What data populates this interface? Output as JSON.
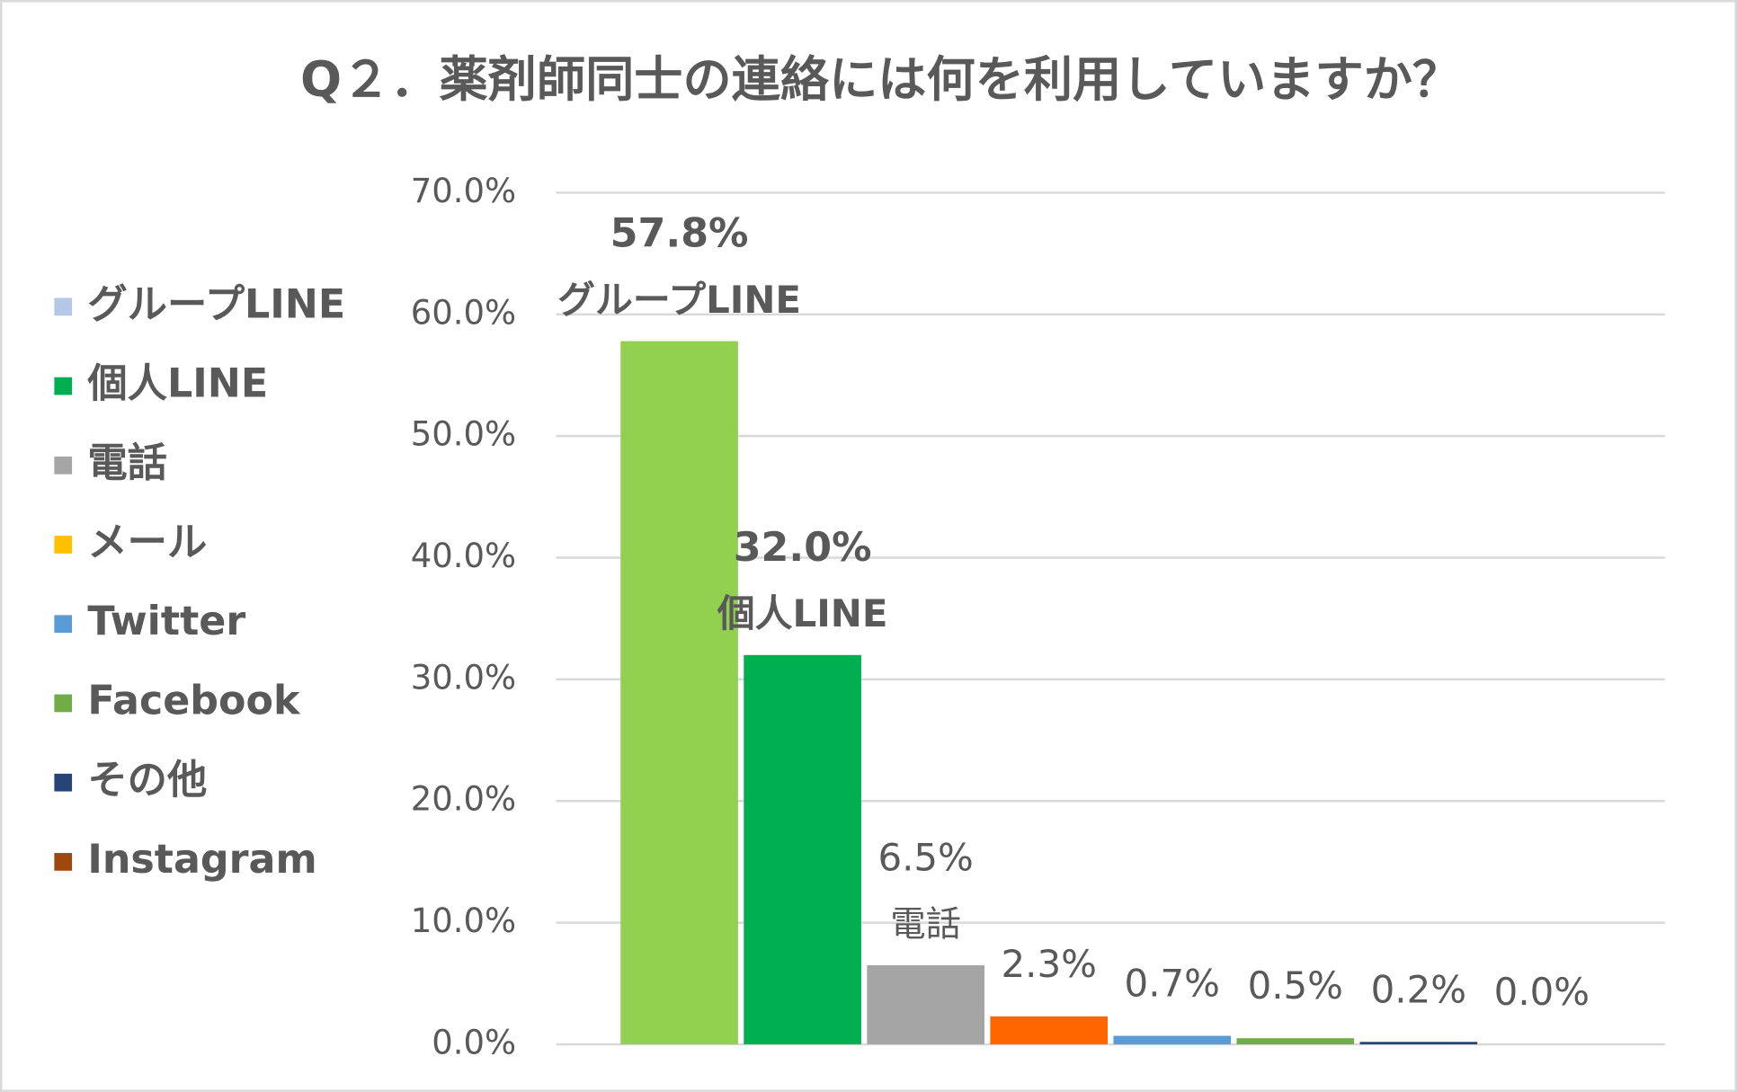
{
  "chart_data": {
    "type": "bar",
    "title": "Q２．薬剤師同士の連絡には何を利用していますか？",
    "categories": [
      "グループLINE",
      "個人LINE",
      "電話",
      "メール",
      "Twitter",
      "Facebook",
      "その他",
      "Instagram"
    ],
    "values": [
      57.8,
      32.0,
      6.5,
      2.3,
      0.7,
      0.5,
      0.2,
      0.0
    ],
    "value_labels": [
      "57.8%",
      "32.0%",
      "6.5%",
      "2.3%",
      "0.7%",
      "0.5%",
      "0.2%",
      "0.0%"
    ],
    "bar_colors": [
      "#92d050",
      "#00b050",
      "#a5a5a5",
      "#ff6600",
      "#5b9bd5",
      "#70ad47",
      "#264478",
      "#9e480e"
    ],
    "legend_colors": [
      "#b4c7e7",
      "#00b050",
      "#a5a5a5",
      "#ffc000",
      "#5b9bd5",
      "#70ad47",
      "#264478",
      "#9e480e"
    ],
    "ylim": [
      0,
      70
    ],
    "yticks": [
      {
        "value": 0,
        "label": "0.0%"
      },
      {
        "value": 10,
        "label": "10.0%"
      },
      {
        "value": 20,
        "label": "20.0%"
      },
      {
        "value": 30,
        "label": "30.0%"
      },
      {
        "value": 40,
        "label": "40.0%"
      },
      {
        "value": 50,
        "label": "50.0%"
      },
      {
        "value": 60,
        "label": "60.0%"
      },
      {
        "value": 70,
        "label": "70.0%"
      }
    ],
    "grid": true,
    "legend": "left"
  }
}
